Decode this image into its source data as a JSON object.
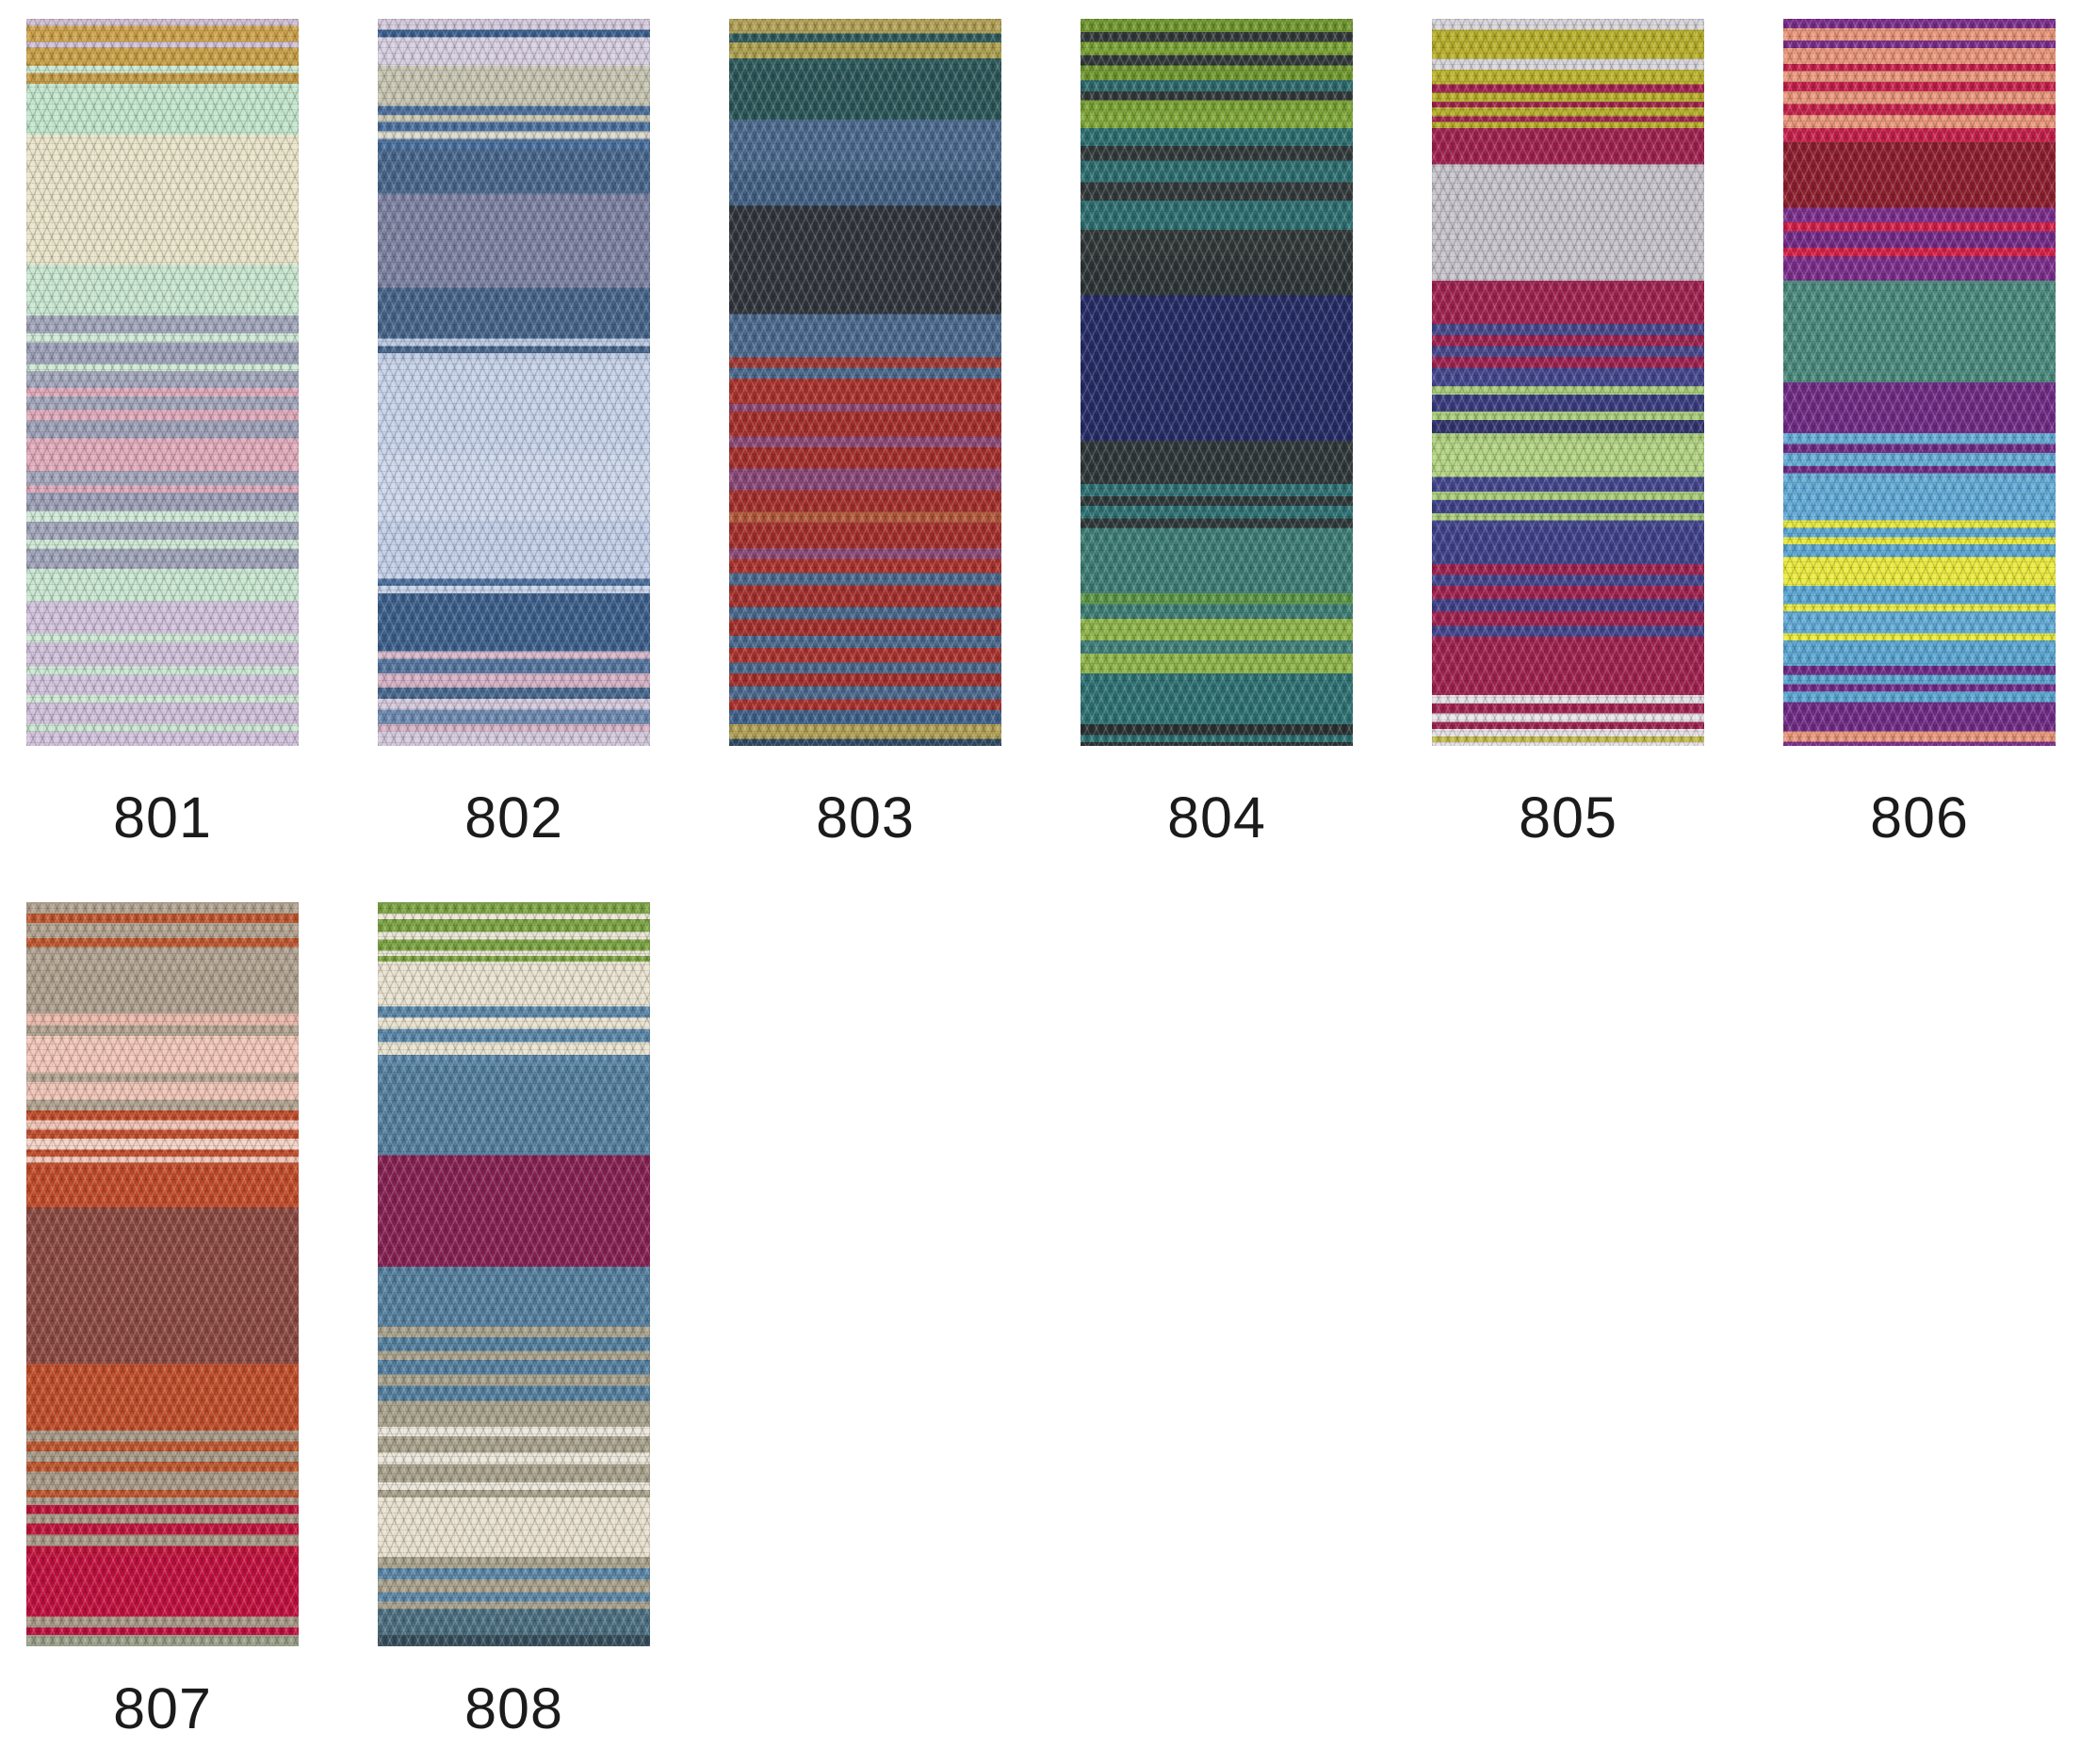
{
  "page": {
    "background": "#ffffff",
    "label_color": "#1b1b1b",
    "description": "yarn shade card with knitted colorway swatches"
  },
  "swatches": [
    {
      "code": "801",
      "stripes": [
        [
          "#d0bfd4",
          1.0
        ],
        [
          "#cda24b",
          2.2
        ],
        [
          "#cfc0da",
          0.8
        ],
        [
          "#c9a148",
          2.5
        ],
        [
          "#cbe8d2",
          1.0
        ],
        [
          "#c49b45",
          1.5
        ],
        [
          "#c3e6cd",
          7.0
        ],
        [
          "#eae4c9",
          18.0
        ],
        [
          "#c9e7d1",
          7.0
        ],
        [
          "#a2a6bb",
          2.5
        ],
        [
          "#cfe9d6",
          1.2
        ],
        [
          "#9da1b8",
          3.0
        ],
        [
          "#cde8d3",
          1.0
        ],
        [
          "#a3a7bc",
          2.3
        ],
        [
          "#dfa9ba",
          1.2
        ],
        [
          "#a2a6bb",
          1.8
        ],
        [
          "#dfa9ba",
          1.5
        ],
        [
          "#9da1b8",
          2.5
        ],
        [
          "#e2abbc",
          4.5
        ],
        [
          "#a2a6bb",
          2.0
        ],
        [
          "#dfa9ba",
          1.0
        ],
        [
          "#9c9fb6",
          2.5
        ],
        [
          "#cfe9d6",
          1.5
        ],
        [
          "#a2a6bb",
          2.5
        ],
        [
          "#cde8d3",
          1.2
        ],
        [
          "#a0a4ba",
          2.8
        ],
        [
          "#c9e7d1",
          4.5
        ],
        [
          "#d2c3dc",
          4.5
        ],
        [
          "#cde8d3",
          1.2
        ],
        [
          "#d0c1da",
          3.3
        ],
        [
          "#cbe8d2",
          1.2
        ],
        [
          "#d2c3dc",
          2.8
        ],
        [
          "#cde8d3",
          1.0
        ],
        [
          "#d0c1da",
          3.0
        ],
        [
          "#c9e7d1",
          1.0
        ],
        [
          "#d2c3dc",
          2.0
        ]
      ]
    },
    {
      "code": "802",
      "stripes": [
        [
          "#d4c9dc",
          1.5
        ],
        [
          "#3b5f90",
          1.0
        ],
        [
          "#d7cfe1",
          4.0
        ],
        [
          "#c7c5b1",
          5.5
        ],
        [
          "#4a6f9d",
          1.2
        ],
        [
          "#c7c5b1",
          1.0
        ],
        [
          "#4a6f9d",
          1.3
        ],
        [
          "#dcd9cb",
          1.0
        ],
        [
          "#4a6f9d",
          1.5
        ],
        [
          "#48678d",
          6.0
        ],
        [
          "#7d82a2",
          13.0
        ],
        [
          "#47658a",
          7.0
        ],
        [
          "#bccae4",
          1.0
        ],
        [
          "#47658a",
          1.0
        ],
        [
          "#bccae4",
          1.0
        ],
        [
          "#c7d3ea",
          13.0
        ],
        [
          "#cdd8ec",
          9.0
        ],
        [
          "#c2cfe8",
          8.0
        ],
        [
          "#4a6f9d",
          1.0
        ],
        [
          "#c7d3ea",
          1.0
        ],
        [
          "#3d608c",
          8.0
        ],
        [
          "#d9b9ca",
          1.0
        ],
        [
          "#55759f",
          2.0
        ],
        [
          "#d5b2c5",
          2.0
        ],
        [
          "#49698f",
          1.5
        ],
        [
          "#d4c9dc",
          1.5
        ],
        [
          "#6d8ab0",
          2.0
        ],
        [
          "#d5b2c5",
          1.0
        ],
        [
          "#d4c9dc",
          2.0
        ]
      ]
    },
    {
      "code": "803",
      "stripes": [
        [
          "#b3a156",
          2.0
        ],
        [
          "#2f5b5d",
          1.3
        ],
        [
          "#ada04f",
          2.2
        ],
        [
          "#2f5b5d",
          1.5
        ],
        [
          "#2d5759",
          7.0
        ],
        [
          "#4b6a8e",
          7.0
        ],
        [
          "#426184",
          5.0
        ],
        [
          "#31363d",
          15.0
        ],
        [
          "#4b6a8e",
          6.0
        ],
        [
          "#a23a35",
          1.5
        ],
        [
          "#4b6a8e",
          1.5
        ],
        [
          "#ab332e",
          3.5
        ],
        [
          "#8d4a77",
          1.0
        ],
        [
          "#a5302d",
          3.5
        ],
        [
          "#8d4a77",
          1.5
        ],
        [
          "#a5302d",
          3.0
        ],
        [
          "#8a4878",
          3.0
        ],
        [
          "#a5302d",
          3.0
        ],
        [
          "#b2583b",
          1.5
        ],
        [
          "#a5302d",
          3.5
        ],
        [
          "#8d4a77",
          1.5
        ],
        [
          "#ab332e",
          2.0
        ],
        [
          "#4b6a8e",
          1.7
        ],
        [
          "#a5302d",
          3.0
        ],
        [
          "#49698c",
          1.7
        ],
        [
          "#a5302d",
          2.3
        ],
        [
          "#4b6a8e",
          1.7
        ],
        [
          "#ab332e",
          2.0
        ],
        [
          "#49698c",
          1.5
        ],
        [
          "#a5302d",
          1.8
        ],
        [
          "#4b6a8e",
          1.8
        ],
        [
          "#ab332e",
          1.5
        ],
        [
          "#40618a",
          2.0
        ],
        [
          "#b3a156",
          2.0
        ],
        [
          "#2e4a62",
          1.0
        ]
      ]
    },
    {
      "code": "804",
      "stripes": [
        [
          "#70982f",
          1.8
        ],
        [
          "#33393a",
          1.4
        ],
        [
          "#7aa334",
          1.8
        ],
        [
          "#33393a",
          1.4
        ],
        [
          "#70982f",
          2.0
        ],
        [
          "#2e6b6d",
          1.6
        ],
        [
          "#33393a",
          1.2
        ],
        [
          "#7aa334",
          1.8
        ],
        [
          "#81a93a",
          2.0
        ],
        [
          "#2e6f71",
          2.5
        ],
        [
          "#343a3b",
          2.0
        ],
        [
          "#2e6f71",
          3.0
        ],
        [
          "#343a3b",
          2.5
        ],
        [
          "#2e6f71",
          4.0
        ],
        [
          "#33393a",
          4.0
        ],
        [
          "#2f3637",
          5.0
        ],
        [
          "#262d67",
          20.0
        ],
        [
          "#30383a",
          6.0
        ],
        [
          "#2f7274",
          1.7
        ],
        [
          "#30383a",
          1.3
        ],
        [
          "#2f7274",
          1.7
        ],
        [
          "#30383a",
          1.3
        ],
        [
          "#3e7e75",
          9.0
        ],
        [
          "#5d9747",
          1.5
        ],
        [
          "#3e7e75",
          2.0
        ],
        [
          "#8fb54a",
          3.0
        ],
        [
          "#41807a",
          1.8
        ],
        [
          "#8fb54a",
          2.7
        ],
        [
          "#2f7274",
          7.0
        ],
        [
          "#2b3233",
          1.5
        ],
        [
          "#2f7274",
          1.0
        ],
        [
          "#2b3233",
          0.5
        ]
      ]
    },
    {
      "code": "805",
      "stripes": [
        [
          "#d7d5da",
          1.5
        ],
        [
          "#b9b02b",
          4.0
        ],
        [
          "#d7d5da",
          1.5
        ],
        [
          "#bcb32d",
          2.0
        ],
        [
          "#a22450",
          1.2
        ],
        [
          "#b9b02b",
          1.2
        ],
        [
          "#a22450",
          0.8
        ],
        [
          "#b9b02b",
          1.2
        ],
        [
          "#a22450",
          0.8
        ],
        [
          "#b9b02b",
          0.8
        ],
        [
          "#a02250",
          5.0
        ],
        [
          "#c7c4cc",
          16.0
        ],
        [
          "#a02250",
          6.0
        ],
        [
          "#47498e",
          1.5
        ],
        [
          "#a02250",
          1.5
        ],
        [
          "#47498e",
          1.5
        ],
        [
          "#a02250",
          1.5
        ],
        [
          "#44478e",
          2.5
        ],
        [
          "#a9cc7a",
          1.2
        ],
        [
          "#3a3d80",
          2.3
        ],
        [
          "#a9cc7a",
          1.2
        ],
        [
          "#333570",
          1.8
        ],
        [
          "#a9cc7a",
          1.0
        ],
        [
          "#b4d584",
          5.0
        ],
        [
          "#44478e",
          2.0
        ],
        [
          "#a9cc7a",
          1.2
        ],
        [
          "#3f428a",
          1.8
        ],
        [
          "#a9cc7a",
          1.0
        ],
        [
          "#44478e",
          1.0
        ],
        [
          "#3f428a",
          5.0
        ],
        [
          "#a02250",
          1.5
        ],
        [
          "#44478e",
          1.5
        ],
        [
          "#a02250",
          1.8
        ],
        [
          "#3f428a",
          1.7
        ],
        [
          "#a02250",
          2.0
        ],
        [
          "#44478e",
          1.5
        ],
        [
          "#a02250",
          8.0
        ],
        [
          "#e5e1e5",
          1.2
        ],
        [
          "#a02250",
          1.3
        ],
        [
          "#e8e4e8",
          1.2
        ],
        [
          "#a02250",
          1.0
        ],
        [
          "#e5e1e5",
          1.0
        ],
        [
          "#c2b94a",
          0.8
        ],
        [
          "#e8e4e8",
          0.5
        ]
      ]
    },
    {
      "code": "806",
      "stripes": [
        [
          "#7c2e8c",
          1.3
        ],
        [
          "#ea977b",
          1.7
        ],
        [
          "#7c2e8c",
          1.0
        ],
        [
          "#ea977b",
          2.2
        ],
        [
          "#c6204b",
          1.0
        ],
        [
          "#ea977b",
          1.5
        ],
        [
          "#c6204b",
          1.3
        ],
        [
          "#ea977b",
          1.7
        ],
        [
          "#c6204b",
          1.5
        ],
        [
          "#ea977b",
          1.8
        ],
        [
          "#c6204b",
          2.0
        ],
        [
          "#8e1f2f",
          9.0
        ],
        [
          "#7c2e8c",
          2.0
        ],
        [
          "#d62049",
          1.2
        ],
        [
          "#752b88",
          2.3
        ],
        [
          "#d62049",
          1.2
        ],
        [
          "#7c2e8c",
          3.3
        ],
        [
          "#4b8a7d",
          14.0
        ],
        [
          "#702b86",
          7.0
        ],
        [
          "#66add8",
          1.5
        ],
        [
          "#702b86",
          1.2
        ],
        [
          "#66add8",
          1.8
        ],
        [
          "#702b86",
          1.0
        ],
        [
          "#66add8",
          1.5
        ],
        [
          "#62abd8",
          5.0
        ],
        [
          "#e9e93c",
          1.0
        ],
        [
          "#5ba7d3",
          1.3
        ],
        [
          "#e9e93c",
          1.0
        ],
        [
          "#5ba7d3",
          1.7
        ],
        [
          "#ebeb3e",
          4.0
        ],
        [
          "#5ba7d3",
          2.5
        ],
        [
          "#e9e93c",
          1.0
        ],
        [
          "#62abd8",
          3.0
        ],
        [
          "#e9e93c",
          1.0
        ],
        [
          "#5ba7d3",
          3.5
        ],
        [
          "#702b86",
          1.2
        ],
        [
          "#5ba7d3",
          1.3
        ],
        [
          "#752b88",
          1.0
        ],
        [
          "#5ba7d3",
          1.5
        ],
        [
          "#702b86",
          4.0
        ],
        [
          "#ea977b",
          1.4
        ],
        [
          "#7c2e8c",
          0.6
        ]
      ]
    },
    {
      "code": "807",
      "stripes": [
        [
          "#b2a391",
          1.5
        ],
        [
          "#c0562f",
          1.3
        ],
        [
          "#b2a391",
          2.0
        ],
        [
          "#c0562f",
          1.2
        ],
        [
          "#b2a391",
          3.0
        ],
        [
          "#afa08e",
          6.0
        ],
        [
          "#ecb9ac",
          1.5
        ],
        [
          "#b2a391",
          1.5
        ],
        [
          "#f2c6b8",
          5.0
        ],
        [
          "#b2a391",
          1.2
        ],
        [
          "#f0c4b6",
          2.3
        ],
        [
          "#b2a391",
          1.5
        ],
        [
          "#c24d2b",
          1.3
        ],
        [
          "#f0c4b6",
          1.3
        ],
        [
          "#c24d2b",
          1.2
        ],
        [
          "#f4d4c7",
          1.4
        ],
        [
          "#c24d2b",
          1.0
        ],
        [
          "#f0c4b6",
          0.8
        ],
        [
          "#c34c2a",
          6.0
        ],
        [
          "#8c4a42",
          21.0
        ],
        [
          "#c14e2a",
          9.0
        ],
        [
          "#a89a88",
          1.5
        ],
        [
          "#c0562f",
          1.3
        ],
        [
          "#a89a88",
          1.4
        ],
        [
          "#c0562f",
          1.3
        ],
        [
          "#a89a88",
          2.5
        ],
        [
          "#c0562f",
          1.0
        ],
        [
          "#a89a88",
          1.0
        ],
        [
          "#c1143c",
          1.2
        ],
        [
          "#a89a88",
          1.3
        ],
        [
          "#c1143c",
          1.5
        ],
        [
          "#a89a88",
          1.5
        ],
        [
          "#c1143c",
          1.5
        ],
        [
          "#c21040",
          8.0
        ],
        [
          "#a89a88",
          1.5
        ],
        [
          "#c21040",
          1.0
        ],
        [
          "#9aa189",
          1.5
        ]
      ]
    },
    {
      "code": "808",
      "stripes": [
        [
          "#7ca443",
          1.5
        ],
        [
          "#eae5d6",
          0.8
        ],
        [
          "#7ca443",
          1.7
        ],
        [
          "#eae5d6",
          1.0
        ],
        [
          "#7ca443",
          1.5
        ],
        [
          "#eae5d6",
          0.7
        ],
        [
          "#7ca443",
          0.8
        ],
        [
          "#eae3d1",
          6.0
        ],
        [
          "#5b87a8",
          1.5
        ],
        [
          "#eae3d1",
          1.5
        ],
        [
          "#5b87a8",
          1.8
        ],
        [
          "#eae3d1",
          1.7
        ],
        [
          "#5b87a8",
          1.5
        ],
        [
          "#55809f",
          12.0
        ],
        [
          "#872254",
          15.0
        ],
        [
          "#55809f",
          8.0
        ],
        [
          "#a9a28d",
          1.5
        ],
        [
          "#55809f",
          1.8
        ],
        [
          "#a9a28d",
          1.2
        ],
        [
          "#55809f",
          2.0
        ],
        [
          "#a9a28d",
          1.5
        ],
        [
          "#55809f",
          2.0
        ],
        [
          "#a9a28d",
          3.5
        ],
        [
          "#ece7da",
          1.3
        ],
        [
          "#a9a28d",
          2.2
        ],
        [
          "#ece7da",
          1.5
        ],
        [
          "#a9a28d",
          2.5
        ],
        [
          "#ece7da",
          1.0
        ],
        [
          "#a9a28d",
          1.0
        ],
        [
          "#e9e1d0",
          8.0
        ],
        [
          "#a9a28d",
          1.5
        ],
        [
          "#5b87a8",
          1.5
        ],
        [
          "#a9a28d",
          1.8
        ],
        [
          "#5b87a8",
          1.2
        ],
        [
          "#a9a28d",
          1.0
        ],
        [
          "#4d7082",
          3.5
        ],
        [
          "#374f5c",
          1.5
        ]
      ]
    }
  ]
}
